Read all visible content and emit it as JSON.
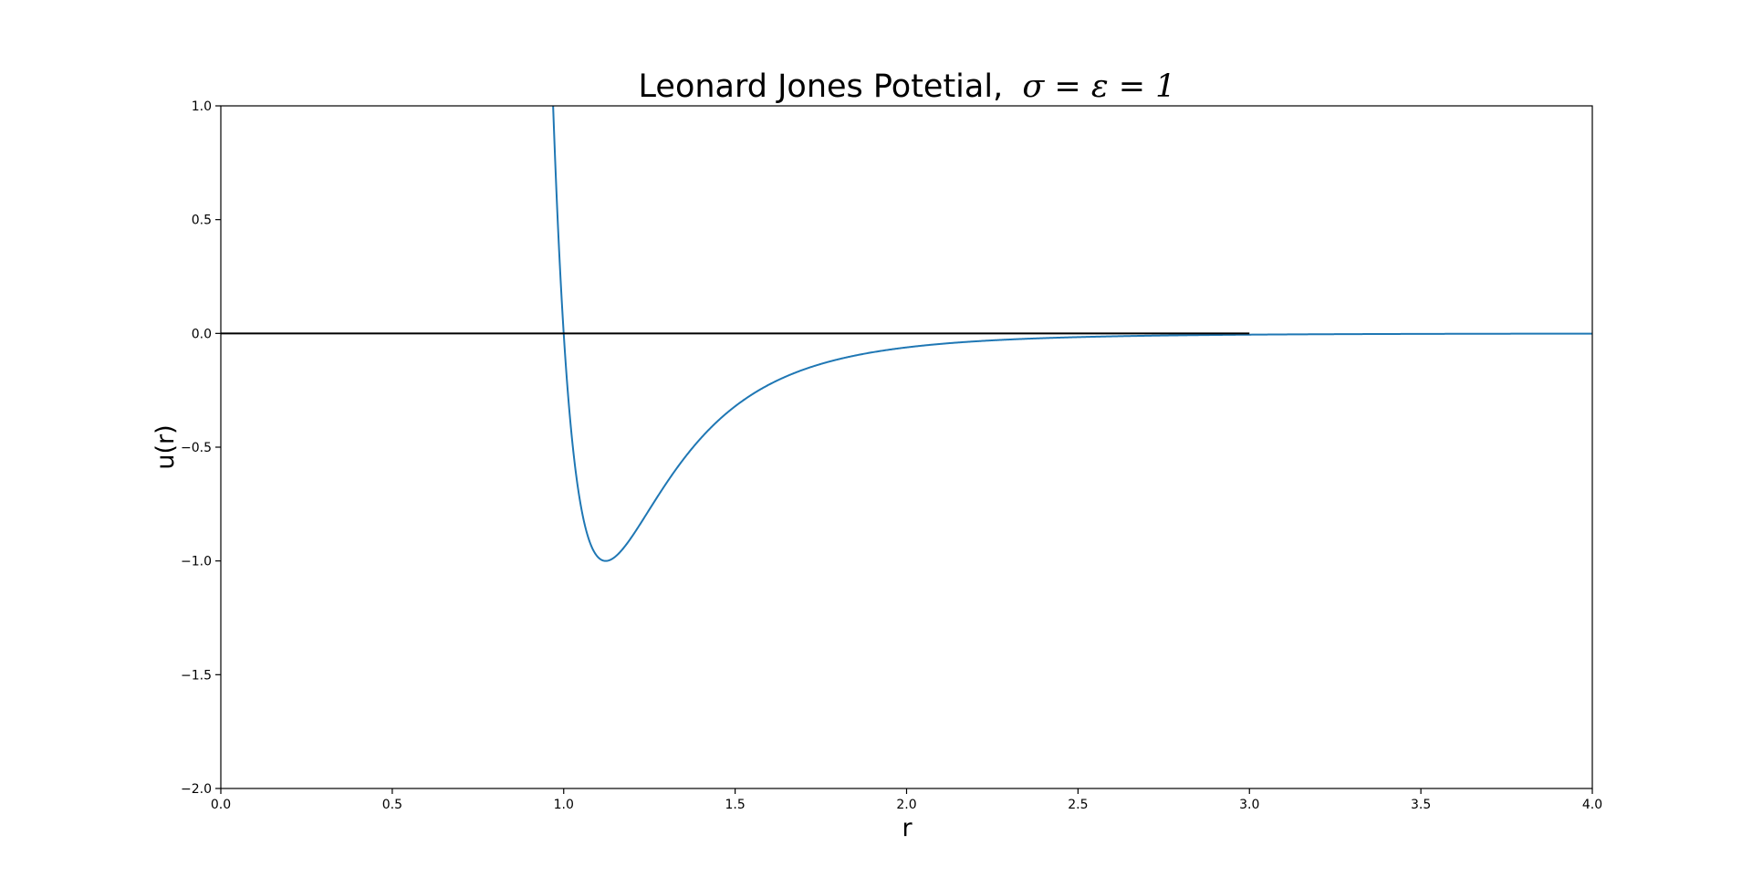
{
  "chart_data": {
    "type": "line",
    "title": "Leonard Jones Potetial,",
    "title_math": "σ = ε = 1",
    "xlabel": "r",
    "ylabel": "u(r)",
    "xlim": [
      0.0,
      4.0
    ],
    "ylim": [
      -2.0,
      1.0
    ],
    "x_ticks": [
      "0.0",
      "0.5",
      "1.0",
      "1.5",
      "2.0",
      "2.5",
      "3.0",
      "3.5",
      "4.0"
    ],
    "y_ticks": [
      "1.0",
      "0.5",
      "0.0",
      "−0.5",
      "−1.0",
      "−1.5",
      "−2.0"
    ],
    "grid": false,
    "legend": "none",
    "series": [
      {
        "function": "4*(r^-12 - r^-6)",
        "x_range": [
          0.96,
          4.0
        ],
        "color": "#1f77b4"
      }
    ],
    "reference_line": {
      "y": 0.0,
      "x_range": [
        0.0,
        3.0
      ],
      "color": "#000000"
    }
  }
}
